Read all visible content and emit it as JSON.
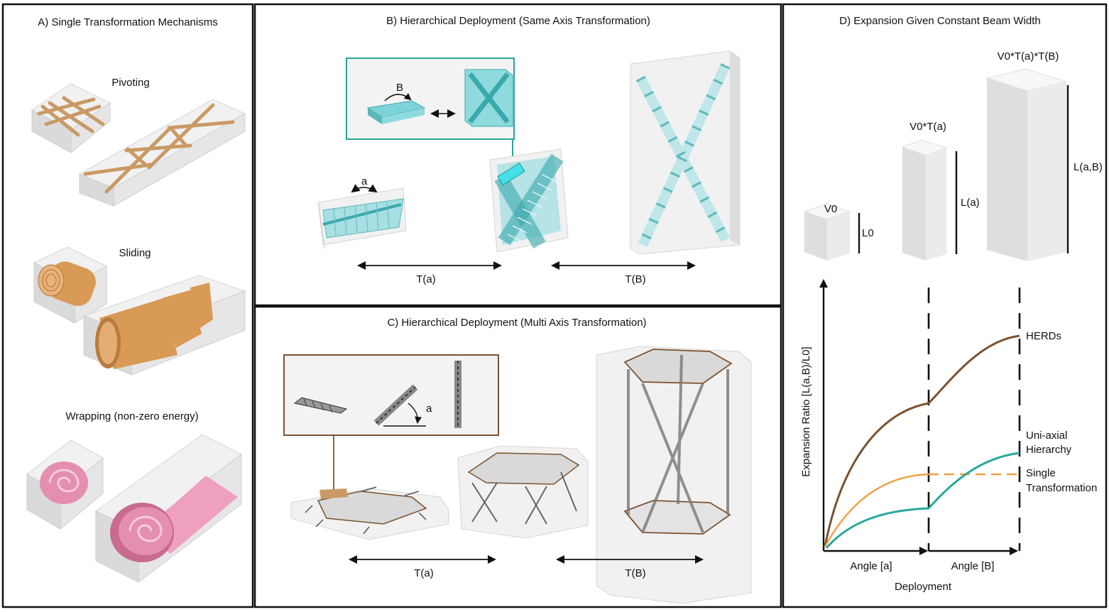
{
  "panels": {
    "A": {
      "title": "A)   Single Transformation Mechanisms",
      "items": [
        "Pivoting",
        "Sliding",
        "Wrapping (non-zero energy)"
      ]
    },
    "B": {
      "title": "B) Hierarchical Deployment (Same Axis Transformation)",
      "angle_small": "a",
      "angle_big": "B",
      "arrow_left": "T(a)",
      "arrow_right": "T(B)"
    },
    "C": {
      "title": "C) Hierarchical Deployment (Multi Axis Transformation)",
      "angle": "a",
      "arrow_left": "T(a)",
      "arrow_right": "T(B)"
    },
    "D": {
      "title": "D) Expansion Given Constant Beam Width",
      "box_small_label": "V0",
      "box_small_length": "L0",
      "box_mid_label": "V0*T(a)",
      "box_mid_length": "L(a)",
      "box_big_label": "V0*T(a)*T(B)",
      "box_big_length": "L(a,B)",
      "y_axis_label": "Expansion Ratio [L(a,B)/L0]",
      "x_axis_label": "Deployment",
      "x_segment_1": "Angle [a]",
      "x_segment_2": "Angle [B]",
      "series": [
        {
          "name": "HERDs",
          "color": "#7b5230"
        },
        {
          "name_line1": "Uni-axial",
          "name_line2": "Hierarchy",
          "color": "#26a89a"
        },
        {
          "name_line1": "Single",
          "name_line2": "Transformation",
          "color": "#f0a042"
        }
      ]
    }
  },
  "colors": {
    "wood": "#c99a66",
    "copper": "#d99a55",
    "pink": "#e48fb2",
    "teal": "#3fbfc2",
    "brown": "#7b5230",
    "box_face": "#efefef"
  }
}
